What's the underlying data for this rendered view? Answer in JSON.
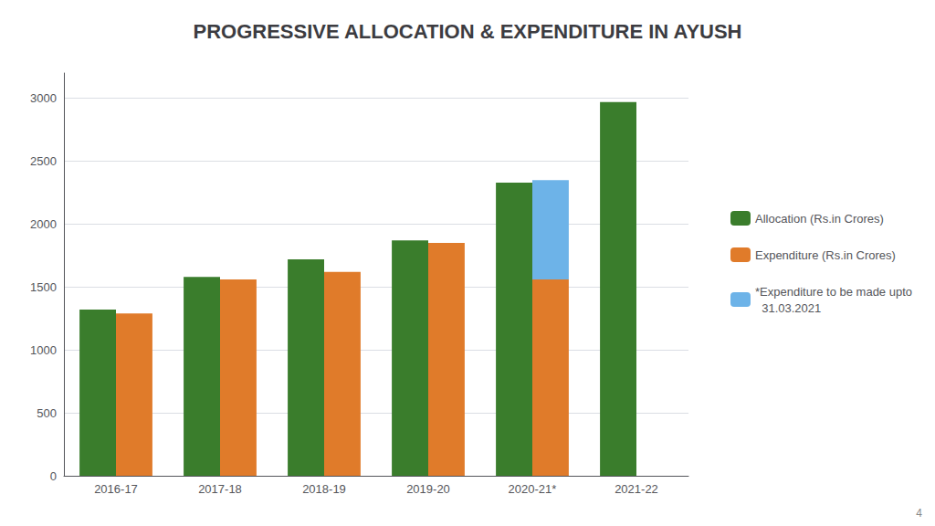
{
  "chart_data": {
    "type": "bar",
    "title": "PROGRESSIVE ALLOCATION & EXPENDITURE IN AYUSH",
    "categories": [
      "2016-17",
      "2017-18",
      "2018-19",
      "2019-20",
      "2020-21*",
      "2021-22"
    ],
    "series": [
      {
        "name": "Allocation (Rs.in Crores)",
        "color": "#3a7d2c",
        "values": [
          1320,
          1580,
          1720,
          1870,
          2330,
          2970
        ]
      },
      {
        "name": "Expenditure (Rs.in Crores)",
        "color": "#e07b2a",
        "values": [
          1290,
          1560,
          1620,
          1850,
          1560,
          0
        ],
        "stacked": true
      },
      {
        "name": "*Expenditure to be made upto\n  31.03.2021",
        "color": "#6db3e8",
        "values": [
          0,
          0,
          0,
          0,
          790,
          0
        ],
        "stacked": true
      }
    ],
    "ylim": [
      0,
      3200
    ],
    "yticks": [
      0,
      500,
      1000,
      1500,
      2000,
      2500,
      3000
    ],
    "grid": true,
    "legend": "right",
    "annotations": [
      "4"
    ]
  }
}
